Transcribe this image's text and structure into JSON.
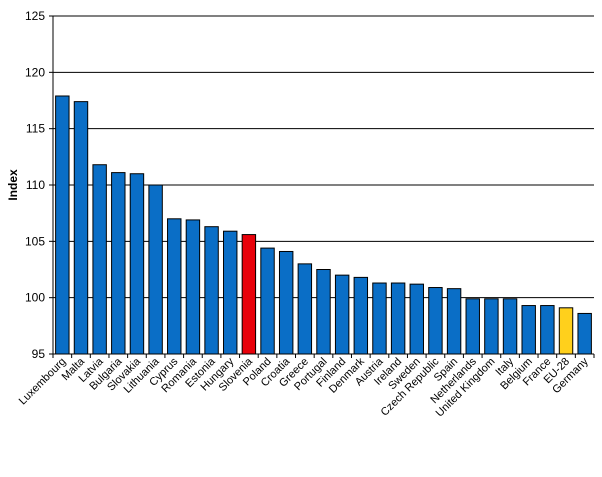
{
  "chart_data": {
    "type": "bar",
    "title": "",
    "xlabel": "",
    "ylabel": "Index",
    "ylim": [
      95,
      125
    ],
    "yticks": [
      95,
      100,
      105,
      110,
      115,
      120,
      125
    ],
    "grid": "horizontal",
    "categories": [
      "Luxembourg",
      "Malta",
      "Latvia",
      "Bulgaria",
      "Slovakia",
      "Lithuania",
      "Cyprus",
      "Romania",
      "Estonia",
      "Hungary",
      "Slovenia",
      "Poland",
      "Croatia",
      "Greece",
      "Portugal",
      "Finland",
      "Denmark",
      "Austria",
      "Ireland",
      "Sweden",
      "Czech Republic",
      "Spain",
      "Netherlands",
      "United Kingdom",
      "Italy",
      "Belgium",
      "France",
      "EU-28",
      "Germany"
    ],
    "values": [
      117.9,
      117.4,
      111.8,
      111.1,
      111.0,
      110.0,
      107.0,
      106.9,
      106.3,
      105.9,
      105.6,
      104.4,
      104.1,
      103.0,
      102.5,
      102.0,
      101.8,
      101.3,
      101.3,
      101.2,
      100.9,
      100.8,
      99.9,
      99.9,
      99.9,
      99.3,
      99.3,
      99.1,
      98.6
    ],
    "colors": {
      "default": "#0A6EC6",
      "highlight": "#E8010A",
      "aggregate": "#FFD01C",
      "outline": "#000000",
      "grid": "#000000"
    },
    "highlight_category": "Slovenia",
    "aggregate_category": "EU-28"
  }
}
